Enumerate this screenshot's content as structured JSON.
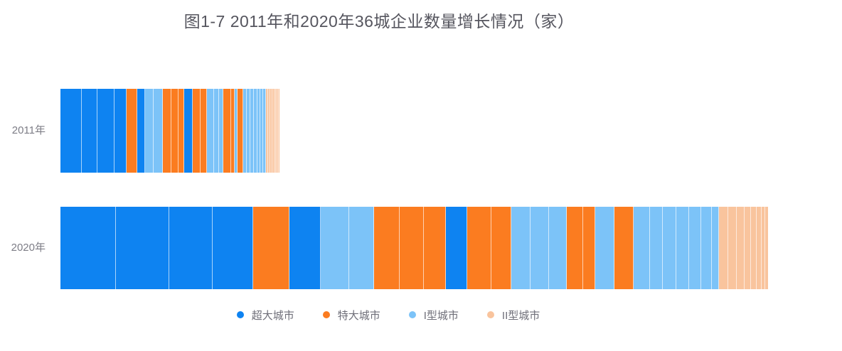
{
  "title": "图1-7 2011年和2020年36城企业数量增长情况（家）",
  "colors": {
    "chaoda_blue": "#0e83f1",
    "teda_orange": "#fb7c20",
    "type1_lightblue": "#7cc3f8",
    "type2_peach": "#f9c49d",
    "title_text": "#55555e",
    "axis_label_text": "#7d7d86",
    "legend_text": "#6e6e78",
    "segment_divider": "rgba(255,255,255,0.65)"
  },
  "axis": {
    "row_labels": [
      "2011年",
      "2020年"
    ]
  },
  "legend": {
    "items": [
      {
        "label": "超大城市",
        "color": "#0e83f1"
      },
      {
        "label": "特大城市",
        "color": "#fb7c20"
      },
      {
        "label": "I型城市",
        "color": "#7cc3f8"
      },
      {
        "label": "II型城市",
        "color": "#f9c49d"
      }
    ]
  },
  "chart_data": {
    "type": "bar",
    "subtype": "horizontal-stacked-proportional",
    "title": "图1-7 2011年和2020年36城企业数量增长情况（家）",
    "unit_label": "家",
    "categories": [
      "超大城市",
      "特大城市",
      "I型城市",
      "II型城市"
    ],
    "category_colors": [
      "#0e83f1",
      "#fb7c20",
      "#7cc3f8",
      "#f9c49d"
    ],
    "axis_note": "no numeric axis shown; 36 segments per bar (one per city), values are measured segment widths in px (proportional to enterprise counts)",
    "legend_position": "bottom-center",
    "grid": false,
    "series": [
      {
        "name": "2011年",
        "segments": [
          {
            "tier": 0,
            "value": 30
          },
          {
            "tier": 0,
            "value": 22
          },
          {
            "tier": 0,
            "value": 24
          },
          {
            "tier": 0,
            "value": 17
          },
          {
            "tier": 1,
            "value": 15
          },
          {
            "tier": 0,
            "value": 11
          },
          {
            "tier": 2,
            "value": 12
          },
          {
            "tier": 2,
            "value": 13
          },
          {
            "tier": 1,
            "value": 12
          },
          {
            "tier": 1,
            "value": 10
          },
          {
            "tier": 1,
            "value": 8
          },
          {
            "tier": 0,
            "value": 12
          },
          {
            "tier": 1,
            "value": 11
          },
          {
            "tier": 1,
            "value": 9
          },
          {
            "tier": 2,
            "value": 10
          },
          {
            "tier": 2,
            "value": 7
          },
          {
            "tier": 2,
            "value": 6
          },
          {
            "tier": 1,
            "value": 11
          },
          {
            "tier": 1,
            "value": 5
          },
          {
            "tier": 2,
            "value": 4
          },
          {
            "tier": 1,
            "value": 8
          },
          {
            "tier": 2,
            "value": 5
          },
          {
            "tier": 2,
            "value": 5
          },
          {
            "tier": 2,
            "value": 5
          },
          {
            "tier": 2,
            "value": 5
          },
          {
            "tier": 2,
            "value": 4
          },
          {
            "tier": 2,
            "value": 4
          },
          {
            "tier": 2,
            "value": 4
          },
          {
            "tier": 3,
            "value": 3
          },
          {
            "tier": 3,
            "value": 3
          },
          {
            "tier": 3,
            "value": 3
          },
          {
            "tier": 3,
            "value": 3
          },
          {
            "tier": 3,
            "value": 2
          },
          {
            "tier": 3,
            "value": 2
          },
          {
            "tier": 3,
            "value": 2
          },
          {
            "tier": 3,
            "value": 1
          }
        ]
      },
      {
        "name": "2020年",
        "segments": [
          {
            "tier": 0,
            "value": 78
          },
          {
            "tier": 0,
            "value": 75
          },
          {
            "tier": 0,
            "value": 61
          },
          {
            "tier": 0,
            "value": 57
          },
          {
            "tier": 1,
            "value": 51
          },
          {
            "tier": 0,
            "value": 44
          },
          {
            "tier": 2,
            "value": 40
          },
          {
            "tier": 2,
            "value": 35
          },
          {
            "tier": 1,
            "value": 36
          },
          {
            "tier": 1,
            "value": 34
          },
          {
            "tier": 1,
            "value": 31
          },
          {
            "tier": 0,
            "value": 30
          },
          {
            "tier": 1,
            "value": 34
          },
          {
            "tier": 1,
            "value": 28
          },
          {
            "tier": 2,
            "value": 27
          },
          {
            "tier": 2,
            "value": 26
          },
          {
            "tier": 2,
            "value": 25
          },
          {
            "tier": 1,
            "value": 23
          },
          {
            "tier": 1,
            "value": 17
          },
          {
            "tier": 2,
            "value": 27
          },
          {
            "tier": 1,
            "value": 27
          },
          {
            "tier": 2,
            "value": 23
          },
          {
            "tier": 2,
            "value": 18
          },
          {
            "tier": 2,
            "value": 19
          },
          {
            "tier": 2,
            "value": 18
          },
          {
            "tier": 2,
            "value": 17
          },
          {
            "tier": 2,
            "value": 15
          },
          {
            "tier": 2,
            "value": 10
          },
          {
            "tier": 3,
            "value": 13
          },
          {
            "tier": 3,
            "value": 12
          },
          {
            "tier": 3,
            "value": 11
          },
          {
            "tier": 3,
            "value": 9
          },
          {
            "tier": 3,
            "value": 8
          },
          {
            "tier": 3,
            "value": 7
          },
          {
            "tier": 3,
            "value": 5
          },
          {
            "tier": 3,
            "value": 4
          }
        ]
      }
    ]
  }
}
